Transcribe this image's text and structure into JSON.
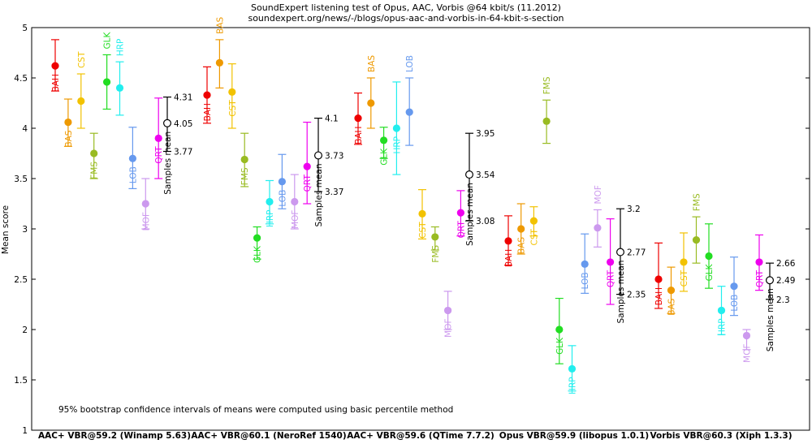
{
  "chart_data": {
    "type": "errorbar",
    "title": "SoundExpert listening test of Opus, AAC, Vorbis @64 kbit/s (11.2012)",
    "subtitle": "soundexpert.org/news/-/blogs/opus-aac-and-vorbis-in-64-kbit-s-section",
    "ylabel": "Mean score",
    "ylim": [
      1,
      5
    ],
    "yticks": [
      "1",
      "1.5",
      "2",
      "2.5",
      "3",
      "3.5",
      "4",
      "4.5",
      "5"
    ],
    "note": "95% bootstrap confidence intervals of means were computed using basic percentile method",
    "samples_mean_label": "Samples mean",
    "colors": {
      "BAH": "#ee0000",
      "BAS": "#ee9900",
      "CST": "#f2c200",
      "FMS": "#99bb22",
      "GLK": "#22dd22",
      "HRP": "#22eeee",
      "LOB": "#6699ee",
      "MOF": "#cc99ee",
      "QRT": "#ee00ee"
    },
    "groups": [
      {
        "label": "AAC+ VBR@59.2 (Winamp 5.63)",
        "samples": [
          {
            "code": "BAH",
            "mean": 4.62,
            "lo": 4.37,
            "hi": 4.88
          },
          {
            "code": "BAS",
            "mean": 4.06,
            "lo": 3.82,
            "hi": 4.29
          },
          {
            "code": "CST",
            "mean": 4.27,
            "lo": 4.0,
            "hi": 4.54
          },
          {
            "code": "FMS",
            "mean": 3.75,
            "lo": 3.5,
            "hi": 3.95
          },
          {
            "code": "GLK",
            "mean": 4.46,
            "lo": 4.19,
            "hi": 4.73
          },
          {
            "code": "HRP",
            "mean": 4.4,
            "lo": 4.13,
            "hi": 4.66
          },
          {
            "code": "LOB",
            "mean": 3.7,
            "lo": 3.4,
            "hi": 4.01
          },
          {
            "code": "MOF",
            "mean": 3.25,
            "lo": 3.0,
            "hi": 3.5
          },
          {
            "code": "QRT",
            "mean": 3.9,
            "lo": 3.5,
            "hi": 4.3
          }
        ],
        "mean": {
          "value": 4.05,
          "lo": 3.77,
          "hi": 4.31,
          "value_label": "4.05",
          "lo_label": "3.77",
          "hi_label": "4.31"
        }
      },
      {
        "label": "AAC+ VBR@60.1 (NeroRef 1540)",
        "samples": [
          {
            "code": "BAH",
            "mean": 4.33,
            "lo": 4.05,
            "hi": 4.61
          },
          {
            "code": "BAS",
            "mean": 4.65,
            "lo": 4.4,
            "hi": 4.88
          },
          {
            "code": "CST",
            "mean": 4.36,
            "lo": 4.0,
            "hi": 4.64
          },
          {
            "code": "FMS",
            "mean": 3.69,
            "lo": 3.42,
            "hi": 3.95
          },
          {
            "code": "GLK",
            "mean": 2.91,
            "lo": 2.7,
            "hi": 3.02
          },
          {
            "code": "HRP",
            "mean": 3.27,
            "lo": 3.05,
            "hi": 3.48
          },
          {
            "code": "LOB",
            "mean": 3.47,
            "lo": 3.2,
            "hi": 3.74
          },
          {
            "code": "MOF",
            "mean": 3.27,
            "lo": 3.0,
            "hi": 3.54
          },
          {
            "code": "QRT",
            "mean": 3.62,
            "lo": 3.25,
            "hi": 4.06
          }
        ],
        "mean": {
          "value": 3.73,
          "lo": 3.37,
          "hi": 4.1,
          "value_label": "3.73",
          "lo_label": "3.37",
          "hi_label": "4.1"
        }
      },
      {
        "label": "AAC+ VBR@59.6 (QTime 7.7.2)",
        "samples": [
          {
            "code": "BAH",
            "mean": 4.1,
            "lo": 3.84,
            "hi": 4.35
          },
          {
            "code": "BAS",
            "mean": 4.25,
            "lo": 4.0,
            "hi": 4.5
          },
          {
            "code": "GLK",
            "mean": 3.88,
            "lo": 3.7,
            "hi": 4.01
          },
          {
            "code": "HRP",
            "mean": 4.0,
            "lo": 3.54,
            "hi": 4.46
          },
          {
            "code": "LOB",
            "mean": 4.16,
            "lo": 3.83,
            "hi": 4.5
          },
          {
            "code": "CST",
            "mean": 3.15,
            "lo": 2.9,
            "hi": 3.39
          },
          {
            "code": "FMS",
            "mean": 2.92,
            "lo": 2.79,
            "hi": 3.02
          },
          {
            "code": "MOF",
            "mean": 2.19,
            "lo": 2.0,
            "hi": 2.38
          },
          {
            "code": "QRT",
            "mean": 3.16,
            "lo": 2.93,
            "hi": 3.38
          }
        ],
        "mean": {
          "value": 3.54,
          "lo": 3.08,
          "hi": 3.95,
          "value_label": "3.54",
          "lo_label": "3.08",
          "hi_label": "3.95"
        }
      },
      {
        "label": "Opus VBR@59.9 (libopus 1.0.1)",
        "samples": [
          {
            "code": "BAH",
            "mean": 2.88,
            "lo": 2.64,
            "hi": 3.13
          },
          {
            "code": "BAS",
            "mean": 3.0,
            "lo": 2.75,
            "hi": 3.25
          },
          {
            "code": "CST",
            "mean": 3.08,
            "lo": 2.93,
            "hi": 3.22
          },
          {
            "code": "FMS",
            "mean": 4.07,
            "lo": 3.85,
            "hi": 4.28
          },
          {
            "code": "GLK",
            "mean": 2.0,
            "lo": 1.66,
            "hi": 2.31
          },
          {
            "code": "HRP",
            "mean": 1.61,
            "lo": 1.39,
            "hi": 1.84
          },
          {
            "code": "LOB",
            "mean": 2.65,
            "lo": 2.36,
            "hi": 2.95
          },
          {
            "code": "MOF",
            "mean": 3.01,
            "lo": 2.82,
            "hi": 3.19
          },
          {
            "code": "QRT",
            "mean": 2.67,
            "lo": 2.25,
            "hi": 3.1
          }
        ],
        "mean": {
          "value": 2.77,
          "lo": 2.35,
          "hi": 3.2,
          "value_label": "2.77",
          "lo_label": "2.35",
          "hi_label": "3.2"
        }
      },
      {
        "label": "Vorbis VBR@60.3 (Xiph 1.3.3)",
        "samples": [
          {
            "code": "BAH",
            "mean": 2.5,
            "lo": 2.21,
            "hi": 2.86
          },
          {
            "code": "BAS",
            "mean": 2.39,
            "lo": 2.16,
            "hi": 2.62
          },
          {
            "code": "CST",
            "mean": 2.67,
            "lo": 2.38,
            "hi": 2.96
          },
          {
            "code": "FMS",
            "mean": 2.89,
            "lo": 2.66,
            "hi": 3.12
          },
          {
            "code": "GLK",
            "mean": 2.73,
            "lo": 2.41,
            "hi": 3.05
          },
          {
            "code": "HRP",
            "mean": 2.19,
            "lo": 1.95,
            "hi": 2.43
          },
          {
            "code": "LOB",
            "mean": 2.43,
            "lo": 2.14,
            "hi": 2.72
          },
          {
            "code": "MOF",
            "mean": 1.94,
            "lo": 1.8,
            "hi": 2.0
          },
          {
            "code": "QRT",
            "mean": 2.67,
            "lo": 2.39,
            "hi": 2.94
          }
        ],
        "mean": {
          "value": 2.49,
          "lo": 2.3,
          "hi": 2.66,
          "value_label": "2.49",
          "lo_label": "2.3",
          "hi_label": "2.66"
        }
      }
    ]
  }
}
